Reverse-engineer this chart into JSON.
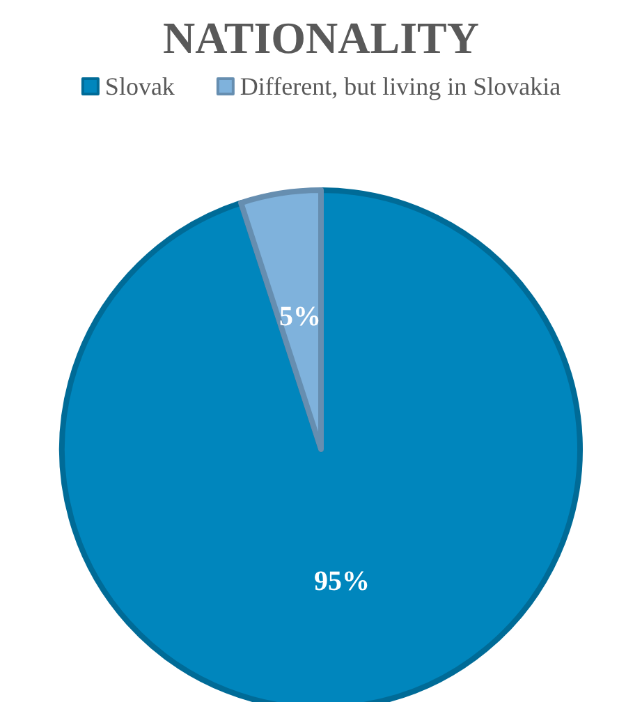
{
  "chart_data": {
    "type": "pie",
    "title": "NATIONALITY",
    "categories": [
      "Slovak",
      "Different, but living in Slovakia"
    ],
    "values": [
      95,
      5
    ],
    "colors": [
      "#0086bd",
      "#7fb2dc"
    ],
    "value_labels": [
      "95%",
      "5%"
    ],
    "legend": "top"
  }
}
